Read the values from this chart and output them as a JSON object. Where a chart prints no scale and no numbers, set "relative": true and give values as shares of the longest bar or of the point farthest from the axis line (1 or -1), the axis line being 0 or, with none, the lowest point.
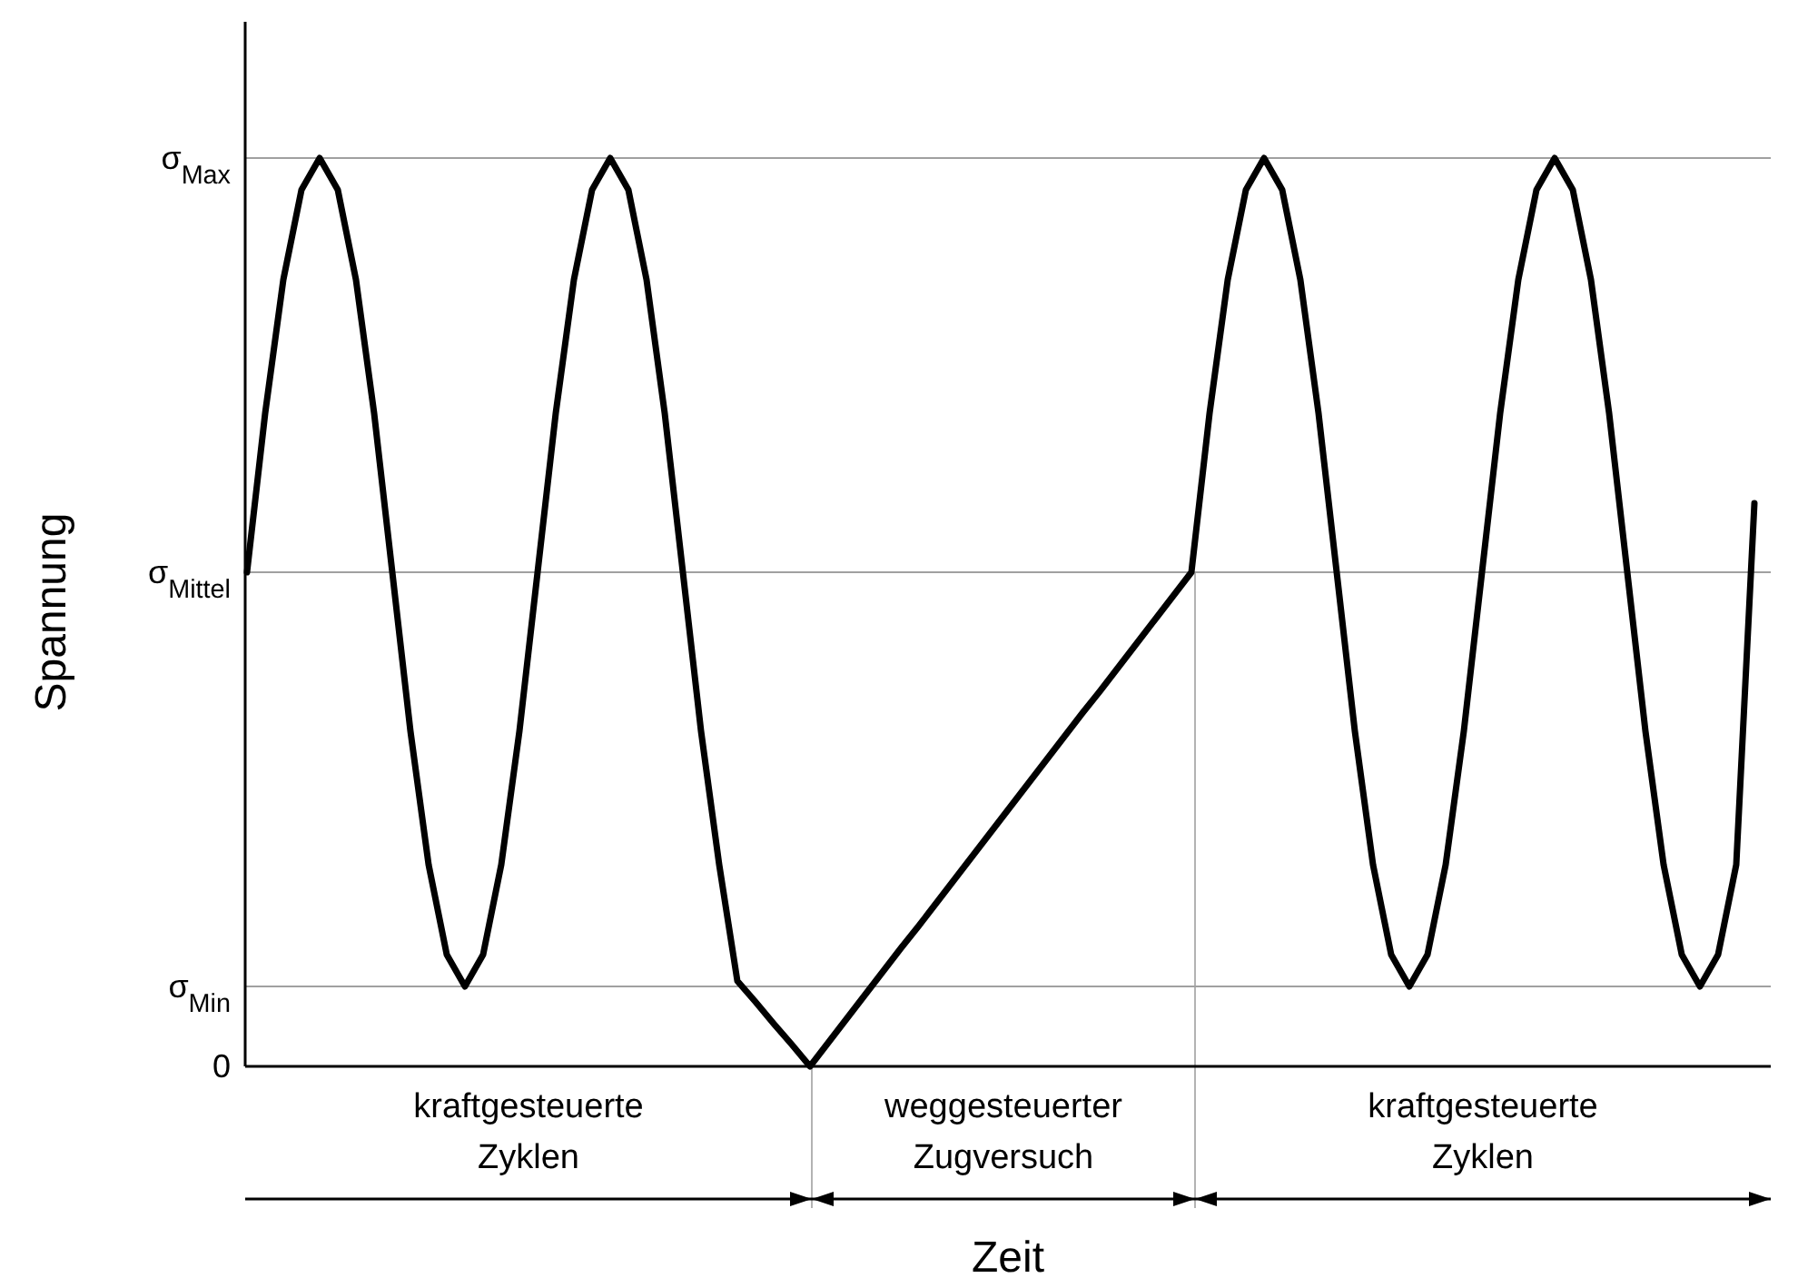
{
  "chart_data": {
    "type": "line",
    "relative": true,
    "xlabel": "Zeit",
    "ylabel": "Spannung",
    "marker": "none",
    "line_style": "solid",
    "categories": [
      null,
      null,
      null,
      null,
      null,
      null,
      null,
      null,
      null,
      null,
      null,
      null,
      null,
      null,
      null,
      null,
      null,
      null,
      null,
      null,
      null,
      null,
      null,
      null,
      null,
      null,
      null,
      null,
      null,
      null,
      null,
      null,
      null,
      null,
      null,
      null,
      null,
      null,
      null,
      null,
      null,
      null,
      null,
      null,
      null,
      null,
      null,
      null,
      null,
      null,
      null,
      null,
      null,
      null,
      null,
      null,
      null,
      null,
      null,
      null,
      null,
      null,
      null,
      null,
      null,
      null,
      null,
      null,
      null,
      null,
      null,
      null,
      null,
      null,
      null,
      null,
      null,
      null,
      null,
      null,
      null,
      null,
      null,
      null
    ],
    "series": [
      {
        "color": "#000000",
        "values": [
          0.544,
          0.719,
          0.866,
          0.965,
          1,
          0.965,
          0.866,
          0.719,
          0.544,
          0.369,
          0.222,
          0.123,
          0.088,
          0.123,
          0.222,
          0.369,
          0.544,
          0.719,
          0.866,
          0.965,
          1,
          0.965,
          0.866,
          0.719,
          0.544,
          0.369,
          0.222,
          0.094,
          0.071,
          0.047,
          0.024,
          0,
          0.026,
          0.052,
          0.078,
          0.104,
          0.13,
          0.155,
          0.181,
          0.207,
          0.233,
          0.259,
          0.285,
          0.311,
          0.337,
          0.363,
          0.389,
          0.414,
          0.44,
          0.466,
          0.492,
          0.518,
          0.544,
          0.719,
          0.866,
          0.965,
          1,
          0.965,
          0.866,
          0.719,
          0.544,
          0.369,
          0.222,
          0.123,
          0.088,
          0.123,
          0.222,
          0.369,
          0.544,
          0.719,
          0.866,
          0.965,
          1,
          0.965,
          0.866,
          0.719,
          0.544,
          0.369,
          0.222,
          0.123,
          0.088,
          0.123,
          0.222,
          0.62
        ]
      }
    ],
    "ref_lines": [
      {
        "axis": "y",
        "value": 1,
        "label": "σ$_{Max}$",
        "color": "#808080"
      },
      {
        "axis": "y",
        "value": 0.544,
        "label": "σ$_{Mittel}$",
        "color": "#808080"
      },
      {
        "axis": "y",
        "value": 0.088,
        "label": "σ$_{Min}$",
        "color": "#808080"
      },
      {
        "axis": "y",
        "value": 0,
        "label": "0",
        "color": "#000000"
      }
    ],
    "annotations": [
      "kraftgesteuerte\nZyklen",
      "weggesteuerter\nZugversuch",
      "kraftgesteuerte\nZyklen"
    ]
  }
}
